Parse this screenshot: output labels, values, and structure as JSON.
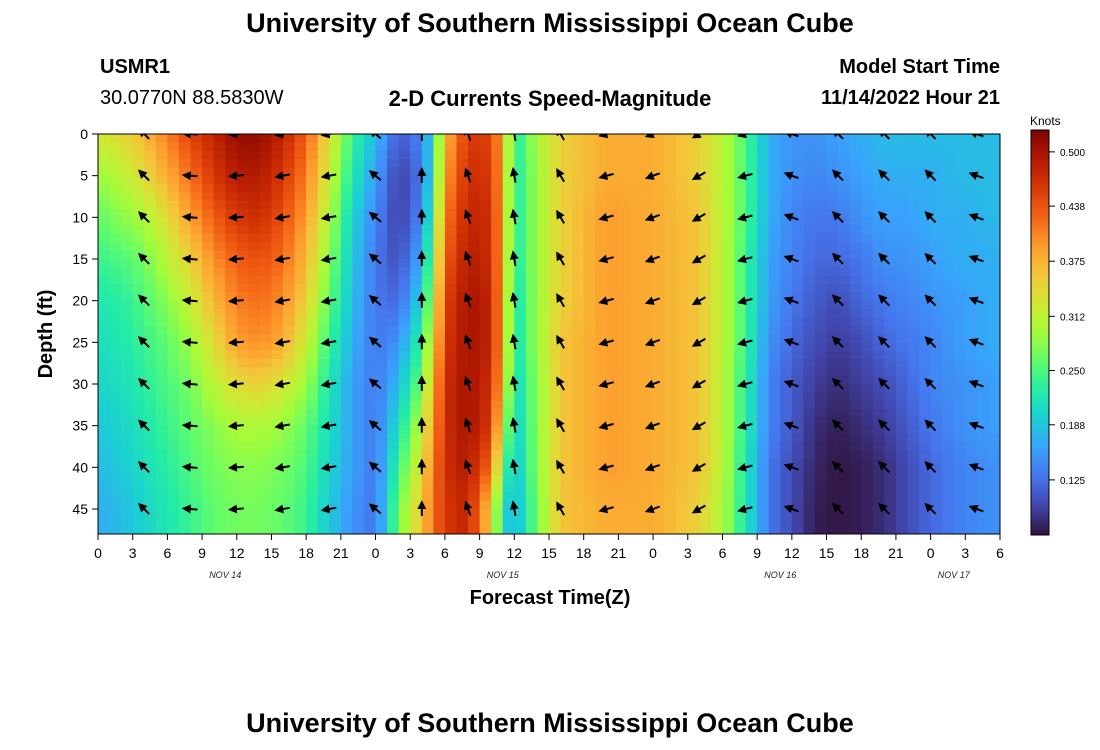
{
  "header": {
    "title": "University of Southern Mississippi Ocean Cube",
    "station_id": "USMR1",
    "coords": "30.0770N  88.5830W",
    "plot_title": "2-D Currents Speed-Magnitude",
    "model_label": "Model Start Time",
    "model_time": "11/14/2022 Hour 21"
  },
  "footer": {
    "title": "University of Southern Mississippi Ocean Cube"
  },
  "chart_data": {
    "type": "heatmap",
    "title": "2-D Currents Speed-Magnitude",
    "xlabel": "Forecast Time(Z)",
    "ylabel": "Depth (ft)",
    "x_hours_range": [
      0,
      78
    ],
    "x_ticks_hours": [
      0,
      3,
      6,
      9,
      12,
      15,
      18,
      21,
      24,
      27,
      30,
      33,
      36,
      39,
      42,
      45,
      48,
      51,
      54,
      57,
      60,
      63,
      66,
      69,
      72,
      75,
      78
    ],
    "x_tick_labels": [
      "0",
      "3",
      "6",
      "9",
      "12",
      "15",
      "18",
      "21",
      "0",
      "3",
      "6",
      "9",
      "12",
      "15",
      "18",
      "21",
      "0",
      "3",
      "6",
      "9",
      "12",
      "15",
      "18",
      "21",
      "0",
      "3",
      "6"
    ],
    "date_labels": [
      {
        "label": "NOV 14",
        "hour": 11
      },
      {
        "label": "NOV 15",
        "hour": 35
      },
      {
        "label": "NOV 16",
        "hour": 59
      },
      {
        "label": "NOV 17",
        "hour": 74
      }
    ],
    "y_range": [
      0,
      48
    ],
    "y_ticks": [
      0,
      5,
      10,
      15,
      20,
      25,
      30,
      35,
      40,
      45
    ],
    "y_tick_labels": [
      "0",
      "5",
      "10",
      "15",
      "20",
      "25",
      "30",
      "35",
      "40",
      "45"
    ],
    "colorbar": {
      "unit": "Knots",
      "min": 0.062,
      "max": 0.525,
      "ticks": [
        0.5,
        0.438,
        0.375,
        0.312,
        0.25,
        0.188,
        0.125
      ],
      "tick_labels": [
        "0.500",
        "0.438",
        "0.375",
        "0.312",
        "0.250",
        "0.188",
        "0.125"
      ],
      "stops": [
        "#30123b",
        "#4145ab",
        "#4675ed",
        "#39a2fc",
        "#1bcfd4",
        "#24eca6",
        "#61fc6c",
        "#a4fc3b",
        "#d1e834",
        "#f3c63a",
        "#fe9b2d",
        "#f36315",
        "#d93806",
        "#b11901",
        "#7a0402"
      ]
    },
    "speed_columns": [
      {
        "hour": 0,
        "values": [
          0.33,
          0.29,
          0.26,
          0.24,
          0.22,
          0.21,
          0.2,
          0.19,
          0.18,
          0.17
        ]
      },
      {
        "hour": 2,
        "values": [
          0.34,
          0.31,
          0.28,
          0.25,
          0.23,
          0.22,
          0.21,
          0.2,
          0.19,
          0.18
        ]
      },
      {
        "hour": 4,
        "values": [
          0.37,
          0.34,
          0.3,
          0.27,
          0.25,
          0.24,
          0.23,
          0.22,
          0.21,
          0.2
        ]
      },
      {
        "hour": 6,
        "values": [
          0.41,
          0.38,
          0.34,
          0.31,
          0.28,
          0.26,
          0.25,
          0.24,
          0.23,
          0.22
        ]
      },
      {
        "hour": 8,
        "values": [
          0.45,
          0.42,
          0.39,
          0.35,
          0.32,
          0.29,
          0.27,
          0.26,
          0.25,
          0.24
        ]
      },
      {
        "hour": 10,
        "values": [
          0.48,
          0.46,
          0.43,
          0.4,
          0.37,
          0.34,
          0.31,
          0.28,
          0.27,
          0.26
        ]
      },
      {
        "hour": 12,
        "values": [
          0.51,
          0.49,
          0.46,
          0.43,
          0.41,
          0.39,
          0.34,
          0.3,
          0.28,
          0.27
        ]
      },
      {
        "hour": 14,
        "values": [
          0.51,
          0.49,
          0.47,
          0.44,
          0.42,
          0.4,
          0.35,
          0.3,
          0.28,
          0.27
        ]
      },
      {
        "hour": 16,
        "values": [
          0.48,
          0.46,
          0.44,
          0.42,
          0.4,
          0.38,
          0.33,
          0.29,
          0.27,
          0.26
        ]
      },
      {
        "hour": 18,
        "values": [
          0.43,
          0.41,
          0.39,
          0.37,
          0.35,
          0.32,
          0.29,
          0.26,
          0.25,
          0.24
        ]
      },
      {
        "hour": 20,
        "values": [
          0.34,
          0.32,
          0.3,
          0.28,
          0.26,
          0.24,
          0.22,
          0.21,
          0.2,
          0.19
        ]
      },
      {
        "hour": 22,
        "values": [
          0.24,
          0.22,
          0.2,
          0.19,
          0.18,
          0.17,
          0.16,
          0.16,
          0.16,
          0.15
        ]
      },
      {
        "hour": 24,
        "values": [
          0.18,
          0.16,
          0.14,
          0.13,
          0.13,
          0.13,
          0.13,
          0.13,
          0.13,
          0.13
        ]
      },
      {
        "hour": 26,
        "values": [
          0.11,
          0.09,
          0.09,
          0.1,
          0.12,
          0.15,
          0.18,
          0.21,
          0.24,
          0.27
        ]
      },
      {
        "hour": 28,
        "values": [
          0.14,
          0.13,
          0.14,
          0.17,
          0.2,
          0.24,
          0.27,
          0.31,
          0.34,
          0.36
        ]
      },
      {
        "hour": 29,
        "values": [
          0.21,
          0.22,
          0.25,
          0.28,
          0.31,
          0.34,
          0.37,
          0.39,
          0.41,
          0.42
        ]
      },
      {
        "hour": 30,
        "values": [
          0.37,
          0.39,
          0.41,
          0.43,
          0.45,
          0.46,
          0.47,
          0.47,
          0.47,
          0.46
        ]
      },
      {
        "hour": 32,
        "values": [
          0.46,
          0.47,
          0.48,
          0.49,
          0.5,
          0.5,
          0.5,
          0.5,
          0.49,
          0.48
        ]
      },
      {
        "hour": 34,
        "values": [
          0.45,
          0.46,
          0.47,
          0.47,
          0.48,
          0.48,
          0.47,
          0.46,
          0.42,
          0.35
        ]
      },
      {
        "hour": 35,
        "values": [
          0.38,
          0.38,
          0.38,
          0.38,
          0.38,
          0.38,
          0.37,
          0.33,
          0.27,
          0.21
        ]
      },
      {
        "hour": 36,
        "values": [
          0.22,
          0.22,
          0.22,
          0.22,
          0.21,
          0.21,
          0.2,
          0.19,
          0.18,
          0.17
        ]
      },
      {
        "hour": 38,
        "values": [
          0.3,
          0.29,
          0.29,
          0.29,
          0.29,
          0.29,
          0.28,
          0.28,
          0.28,
          0.27
        ]
      },
      {
        "hour": 40,
        "values": [
          0.35,
          0.35,
          0.35,
          0.35,
          0.35,
          0.36,
          0.36,
          0.36,
          0.36,
          0.36
        ]
      },
      {
        "hour": 44,
        "values": [
          0.38,
          0.38,
          0.39,
          0.39,
          0.39,
          0.39,
          0.39,
          0.39,
          0.39,
          0.38
        ]
      },
      {
        "hour": 48,
        "values": [
          0.38,
          0.38,
          0.38,
          0.38,
          0.38,
          0.38,
          0.38,
          0.38,
          0.38,
          0.38
        ]
      },
      {
        "hour": 52,
        "values": [
          0.35,
          0.35,
          0.36,
          0.36,
          0.36,
          0.36,
          0.36,
          0.36,
          0.36,
          0.35
        ]
      },
      {
        "hour": 54,
        "values": [
          0.31,
          0.31,
          0.31,
          0.31,
          0.31,
          0.31,
          0.31,
          0.31,
          0.31,
          0.3
        ]
      },
      {
        "hour": 56,
        "values": [
          0.25,
          0.25,
          0.25,
          0.24,
          0.24,
          0.24,
          0.23,
          0.23,
          0.22,
          0.22
        ]
      },
      {
        "hour": 58,
        "values": [
          0.17,
          0.17,
          0.17,
          0.16,
          0.16,
          0.15,
          0.14,
          0.14,
          0.13,
          0.13
        ]
      },
      {
        "hour": 60,
        "values": [
          0.15,
          0.15,
          0.14,
          0.14,
          0.13,
          0.12,
          0.11,
          0.11,
          0.1,
          0.1
        ]
      },
      {
        "hour": 62,
        "values": [
          0.15,
          0.14,
          0.13,
          0.12,
          0.11,
          0.1,
          0.09,
          0.08,
          0.075,
          0.07
        ]
      },
      {
        "hour": 64,
        "values": [
          0.16,
          0.15,
          0.13,
          0.12,
          0.1,
          0.09,
          0.08,
          0.07,
          0.065,
          0.065
        ]
      },
      {
        "hour": 66,
        "values": [
          0.17,
          0.16,
          0.15,
          0.13,
          0.12,
          0.1,
          0.09,
          0.08,
          0.07,
          0.07
        ]
      },
      {
        "hour": 68,
        "values": [
          0.18,
          0.17,
          0.16,
          0.15,
          0.13,
          0.12,
          0.1,
          0.09,
          0.08,
          0.08
        ]
      },
      {
        "hour": 70,
        "values": [
          0.18,
          0.17,
          0.16,
          0.15,
          0.14,
          0.13,
          0.12,
          0.11,
          0.1,
          0.1
        ]
      },
      {
        "hour": 72,
        "values": [
          0.18,
          0.17,
          0.17,
          0.16,
          0.15,
          0.14,
          0.14,
          0.13,
          0.12,
          0.12
        ]
      },
      {
        "hour": 75,
        "values": [
          0.18,
          0.18,
          0.17,
          0.17,
          0.16,
          0.16,
          0.15,
          0.15,
          0.14,
          0.14
        ]
      },
      {
        "hour": 78,
        "values": [
          0.18,
          0.18,
          0.18,
          0.17,
          0.17,
          0.17,
          0.16,
          0.16,
          0.15,
          0.15
        ]
      }
    ],
    "vector_hours": [
      4,
      8,
      12,
      16,
      20,
      24,
      28,
      32,
      36,
      40,
      44,
      48,
      52,
      56,
      60,
      64,
      68,
      72,
      76
    ],
    "vector_depths": [
      0,
      5,
      10,
      15,
      20,
      25,
      30,
      35,
      40,
      45
    ],
    "vector_dir_deg_by_hour": [
      225,
      185,
      175,
      170,
      170,
      220,
      270,
      250,
      260,
      240,
      165,
      160,
      150,
      165,
      200,
      225,
      225,
      225,
      200
    ]
  }
}
